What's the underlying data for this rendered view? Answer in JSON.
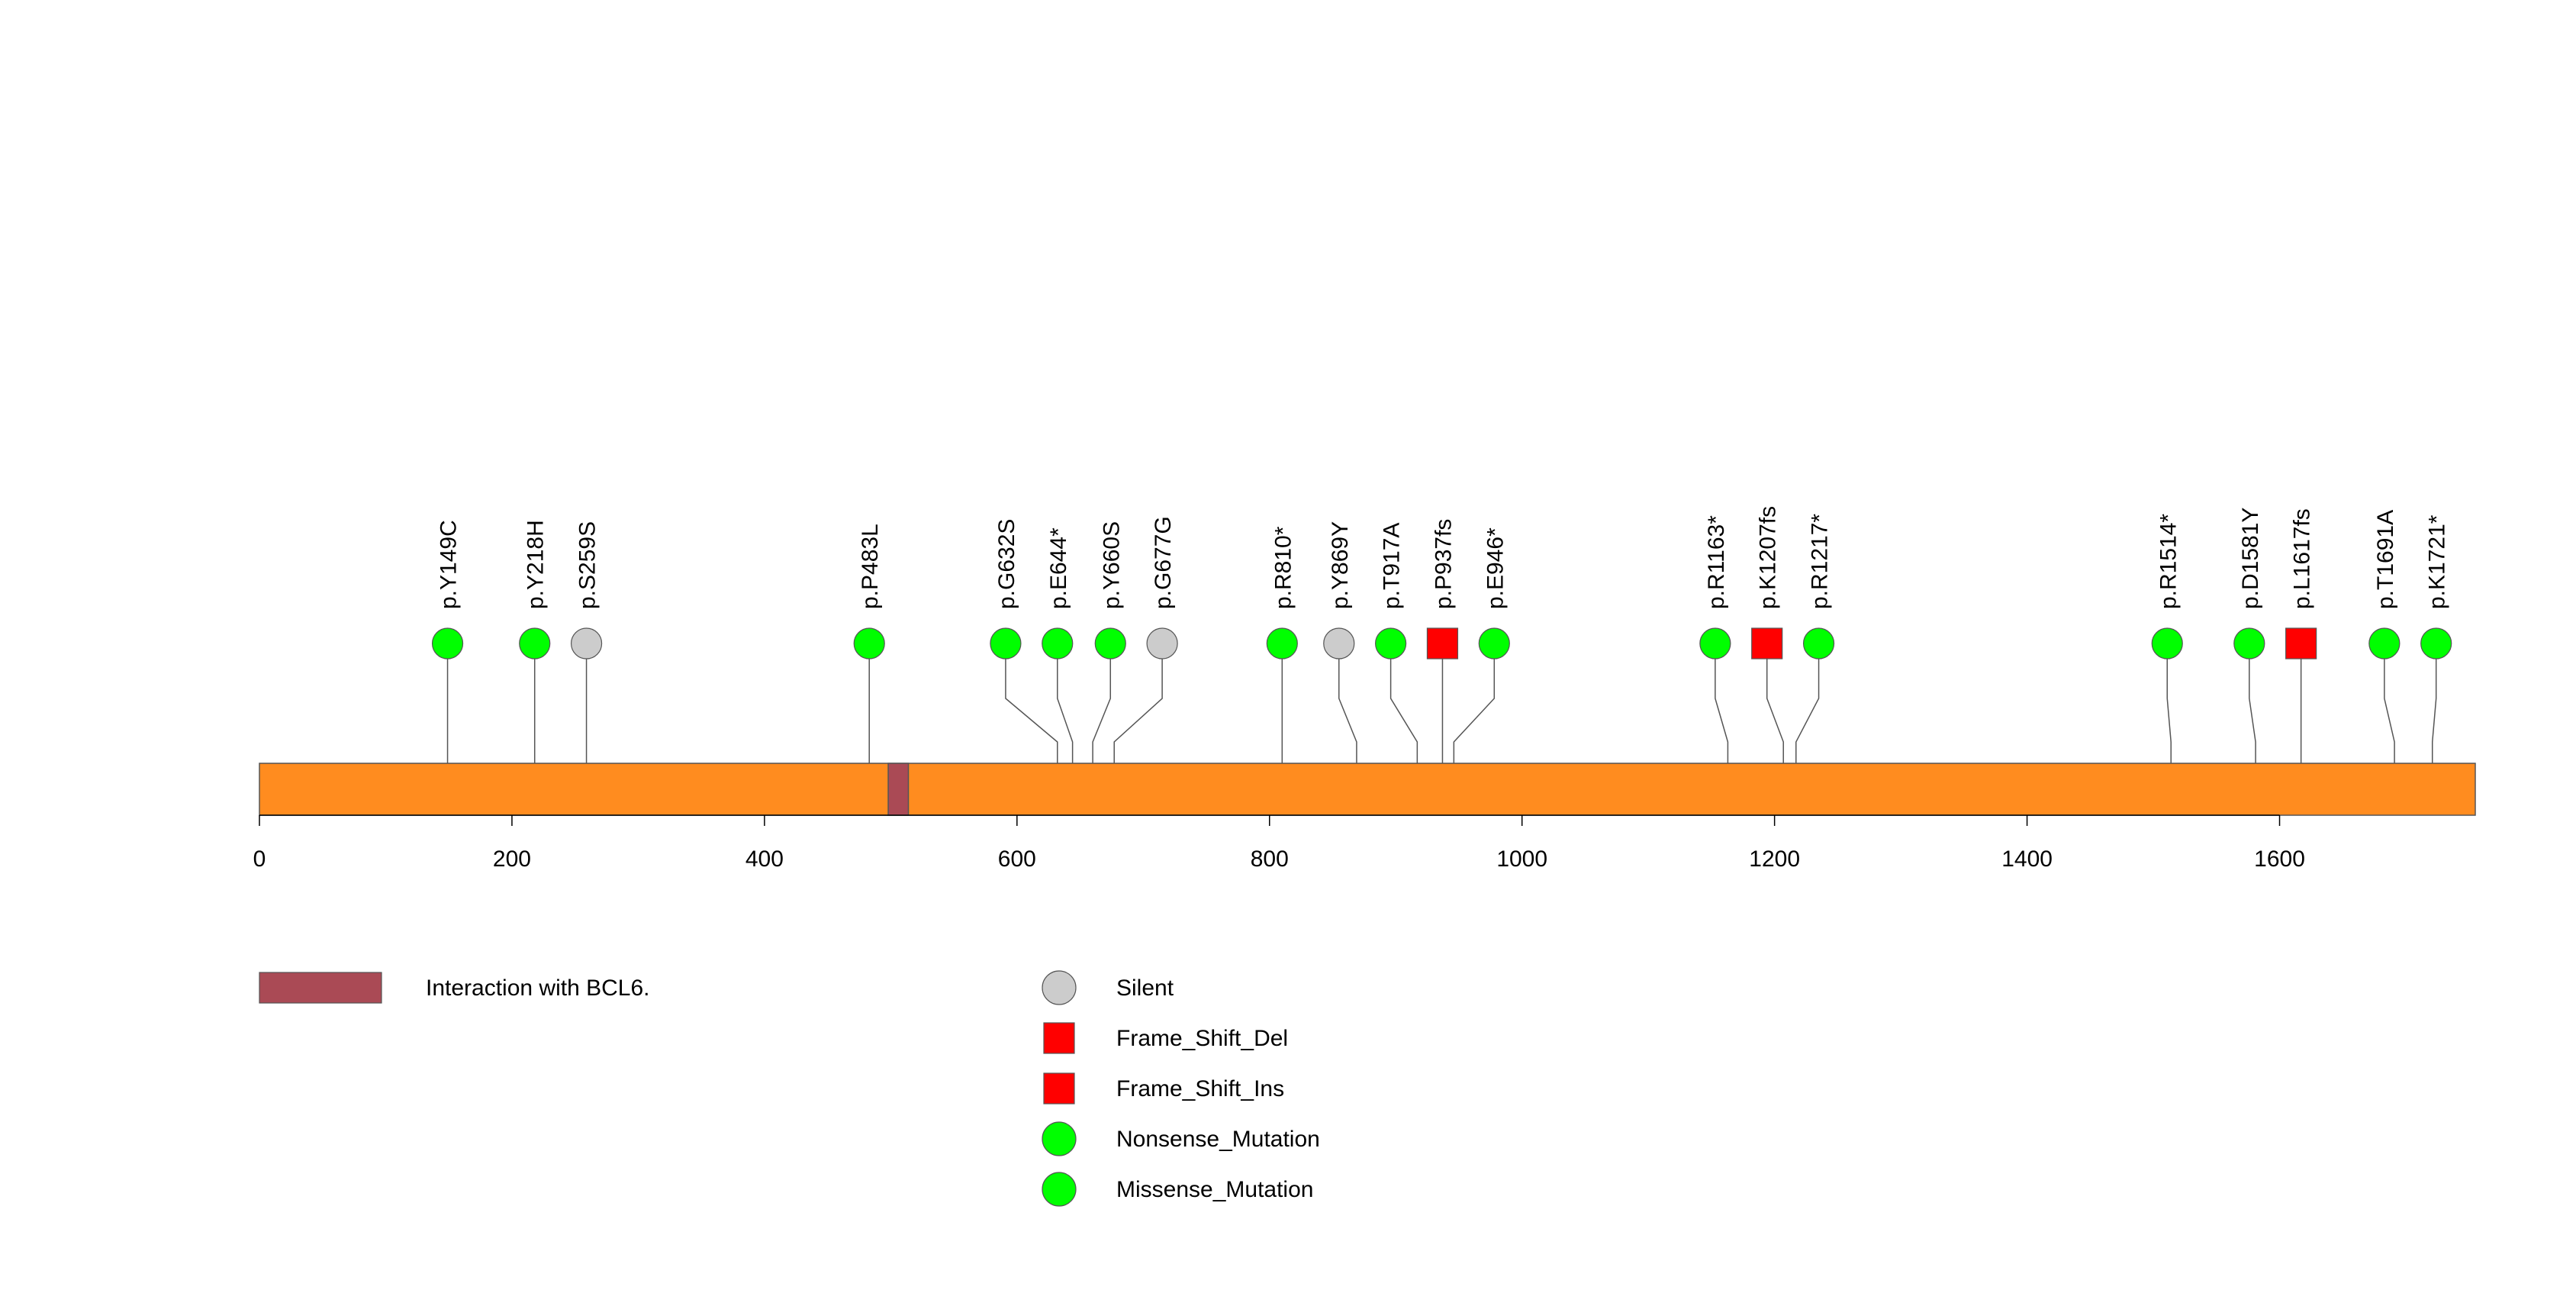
{
  "chart_data": {
    "type": "lollipop",
    "protein_length": 1755,
    "axis": {
      "xlim": [
        0,
        1755
      ],
      "ticks": [
        0,
        200,
        400,
        600,
        800,
        1000,
        1200,
        1400,
        1600
      ]
    },
    "protein_bar_color": "#ff8c1f",
    "domains": [
      {
        "name": "Interaction with BCL6.",
        "start": 498,
        "end": 514,
        "color": "#aa4a55"
      }
    ],
    "mutations": [
      {
        "label": "p.Y149C",
        "position": 149,
        "type": "Missense_Mutation",
        "shape": "circle",
        "color": "#00ff00",
        "label_pos": 149
      },
      {
        "label": "p.Y218H",
        "position": 218,
        "type": "Missense_Mutation",
        "shape": "circle",
        "color": "#00ff00",
        "label_pos": 218
      },
      {
        "label": "p.S259S",
        "position": 259,
        "type": "Silent",
        "shape": "circle",
        "color": "#cccccc",
        "label_pos": 259
      },
      {
        "label": "p.P483L",
        "position": 483,
        "type": "Missense_Mutation",
        "shape": "circle",
        "color": "#00ff00",
        "label_pos": 483
      },
      {
        "label": "p.G632S",
        "position": 632,
        "type": "Missense_Mutation",
        "shape": "circle",
        "color": "#00ff00",
        "label_pos": 591
      },
      {
        "label": "p.E644*",
        "position": 644,
        "type": "Nonsense_Mutation",
        "shape": "circle",
        "color": "#00ff00",
        "label_pos": 632
      },
      {
        "label": "p.Y660S",
        "position": 660,
        "type": "Missense_Mutation",
        "shape": "circle",
        "color": "#00ff00",
        "label_pos": 674
      },
      {
        "label": "p.G677G",
        "position": 677,
        "type": "Silent",
        "shape": "circle",
        "color": "#cccccc",
        "label_pos": 715
      },
      {
        "label": "p.R810*",
        "position": 810,
        "type": "Nonsense_Mutation",
        "shape": "circle",
        "color": "#00ff00",
        "label_pos": 810
      },
      {
        "label": "p.Y869Y",
        "position": 869,
        "type": "Silent",
        "shape": "circle",
        "color": "#cccccc",
        "label_pos": 855
      },
      {
        "label": "p.T917A",
        "position": 917,
        "type": "Missense_Mutation",
        "shape": "circle",
        "color": "#00ff00",
        "label_pos": 896
      },
      {
        "label": "p.P937fs",
        "position": 937,
        "type": "Frame_Shift_Del",
        "shape": "square",
        "color": "#ff0000",
        "label_pos": 937
      },
      {
        "label": "p.E946*",
        "position": 946,
        "type": "Nonsense_Mutation",
        "shape": "circle",
        "color": "#00ff00",
        "label_pos": 978
      },
      {
        "label": "p.R1163*",
        "position": 1163,
        "type": "Nonsense_Mutation",
        "shape": "circle",
        "color": "#00ff00",
        "label_pos": 1153
      },
      {
        "label": "p.K1207fs",
        "position": 1207,
        "type": "Frame_Shift_Ins",
        "shape": "square",
        "color": "#ff0000",
        "label_pos": 1194
      },
      {
        "label": "p.R1217*",
        "position": 1217,
        "type": "Nonsense_Mutation",
        "shape": "circle",
        "color": "#00ff00",
        "label_pos": 1235
      },
      {
        "label": "p.R1514*",
        "position": 1514,
        "type": "Nonsense_Mutation",
        "shape": "circle",
        "color": "#00ff00",
        "label_pos": 1511
      },
      {
        "label": "p.D1581Y",
        "position": 1581,
        "type": "Missense_Mutation",
        "shape": "circle",
        "color": "#00ff00",
        "label_pos": 1576
      },
      {
        "label": "p.L1617fs",
        "position": 1617,
        "type": "Frame_Shift_Del",
        "shape": "square",
        "color": "#ff0000",
        "label_pos": 1617
      },
      {
        "label": "p.T1691A",
        "position": 1691,
        "type": "Missense_Mutation",
        "shape": "circle",
        "color": "#00ff00",
        "label_pos": 1683
      },
      {
        "label": "p.K1721*",
        "position": 1721,
        "type": "Nonsense_Mutation",
        "shape": "circle",
        "color": "#00ff00",
        "label_pos": 1724
      }
    ],
    "legend": {
      "domains": [
        {
          "label": "Interaction with BCL6.",
          "color": "#aa4a55"
        }
      ],
      "mutation_types": [
        {
          "label": "Silent",
          "shape": "circle",
          "color": "#cccccc"
        },
        {
          "label": "Frame_Shift_Del",
          "shape": "square",
          "color": "#ff0000"
        },
        {
          "label": "Frame_Shift_Ins",
          "shape": "square",
          "color": "#ff0000"
        },
        {
          "label": "Nonsense_Mutation",
          "shape": "circle",
          "color": "#00ff00"
        },
        {
          "label": "Missense_Mutation",
          "shape": "circle",
          "color": "#00ff00"
        }
      ]
    }
  }
}
